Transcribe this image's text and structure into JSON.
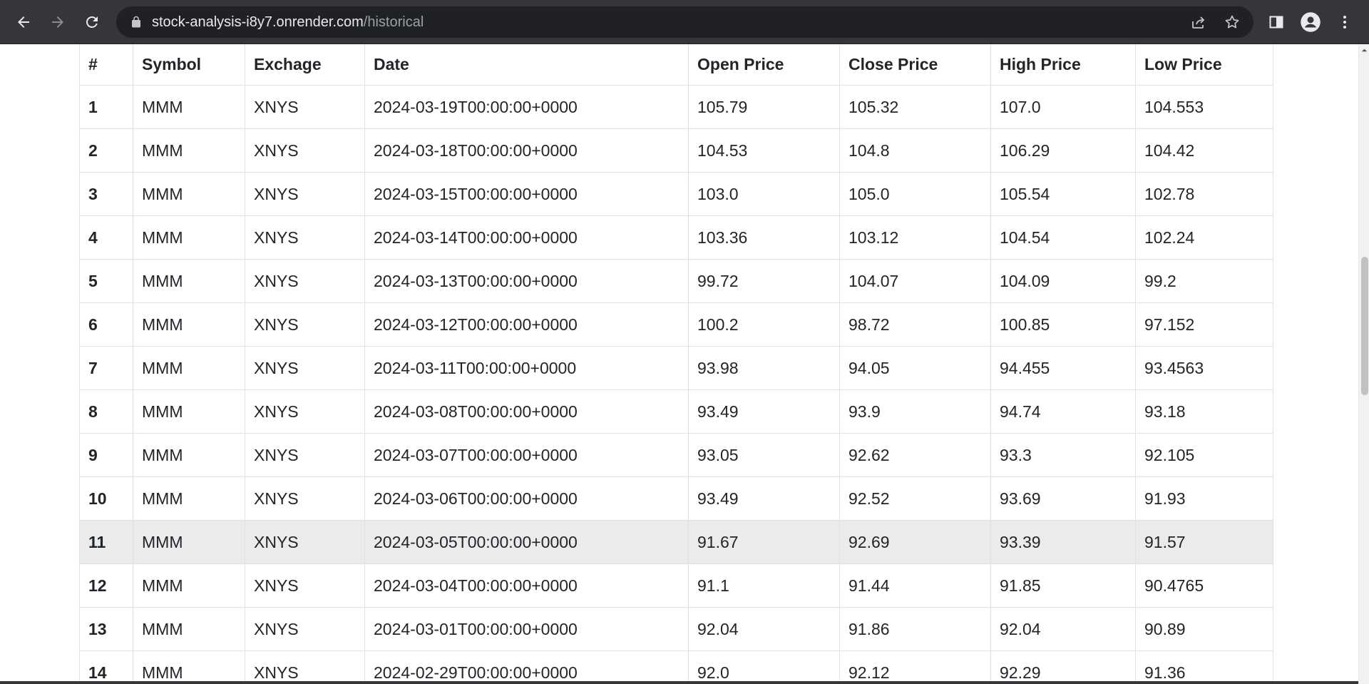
{
  "browser": {
    "url_host": "stock-analysis-i8y7.onrender.com",
    "url_path": "/historical"
  },
  "table": {
    "headers": [
      "#",
      "Symbol",
      "Exchage",
      "Date",
      "Open Price",
      "Close Price",
      "High Price",
      "Low Price"
    ],
    "rows": [
      [
        "1",
        "MMM",
        "XNYS",
        "2024-03-19T00:00:00+0000",
        "105.79",
        "105.32",
        "107.0",
        "104.553"
      ],
      [
        "2",
        "MMM",
        "XNYS",
        "2024-03-18T00:00:00+0000",
        "104.53",
        "104.8",
        "106.29",
        "104.42"
      ],
      [
        "3",
        "MMM",
        "XNYS",
        "2024-03-15T00:00:00+0000",
        "103.0",
        "105.0",
        "105.54",
        "102.78"
      ],
      [
        "4",
        "MMM",
        "XNYS",
        "2024-03-14T00:00:00+0000",
        "103.36",
        "103.12",
        "104.54",
        "102.24"
      ],
      [
        "5",
        "MMM",
        "XNYS",
        "2024-03-13T00:00:00+0000",
        "99.72",
        "104.07",
        "104.09",
        "99.2"
      ],
      [
        "6",
        "MMM",
        "XNYS",
        "2024-03-12T00:00:00+0000",
        "100.2",
        "98.72",
        "100.85",
        "97.152"
      ],
      [
        "7",
        "MMM",
        "XNYS",
        "2024-03-11T00:00:00+0000",
        "93.98",
        "94.05",
        "94.455",
        "93.4563"
      ],
      [
        "8",
        "MMM",
        "XNYS",
        "2024-03-08T00:00:00+0000",
        "93.49",
        "93.9",
        "94.74",
        "93.18"
      ],
      [
        "9",
        "MMM",
        "XNYS",
        "2024-03-07T00:00:00+0000",
        "93.05",
        "92.62",
        "93.3",
        "92.105"
      ],
      [
        "10",
        "MMM",
        "XNYS",
        "2024-03-06T00:00:00+0000",
        "93.49",
        "92.52",
        "93.69",
        "91.93"
      ],
      [
        "11",
        "MMM",
        "XNYS",
        "2024-03-05T00:00:00+0000",
        "91.67",
        "92.69",
        "93.39",
        "91.57"
      ],
      [
        "12",
        "MMM",
        "XNYS",
        "2024-03-04T00:00:00+0000",
        "91.1",
        "91.44",
        "91.85",
        "90.4765"
      ],
      [
        "13",
        "MMM",
        "XNYS",
        "2024-03-01T00:00:00+0000",
        "92.04",
        "91.86",
        "92.04",
        "90.89"
      ],
      [
        "14",
        "MMM",
        "XNYS",
        "2024-02-29T00:00:00+0000",
        "92.0",
        "92.12",
        "92.29",
        "91.36"
      ]
    ],
    "hover_row_index": 10
  },
  "colors": {
    "toolbar_bg": "#35363a",
    "omnibox_bg": "#202124",
    "hover_row_bg": "#ebebeb",
    "table_border": "#dee2e6"
  },
  "icons": {
    "back": "arrow-left-icon",
    "forward": "arrow-right-icon",
    "reload": "reload-icon",
    "lock": "lock-icon",
    "share": "share-icon",
    "bookmark": "star-icon",
    "side_panel": "side-panel-icon",
    "profile": "profile-icon",
    "menu": "kebab-menu-icon"
  }
}
